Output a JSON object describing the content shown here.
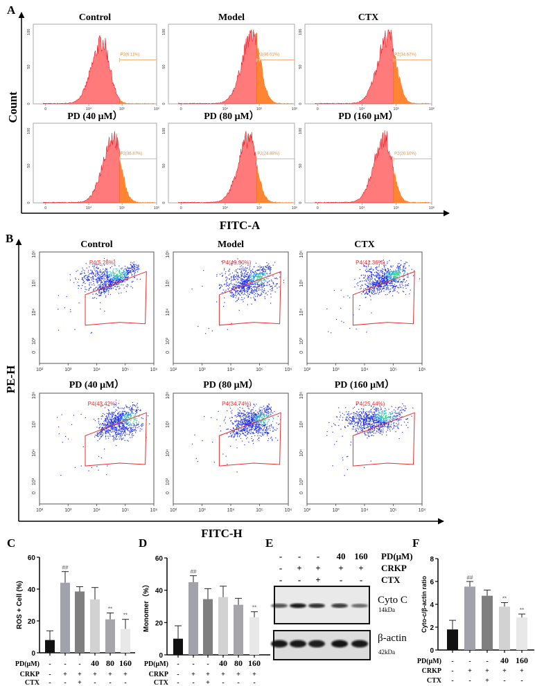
{
  "panel_labels": {
    "a": "A",
    "b": "B",
    "c": "C",
    "d": "D",
    "e": "E",
    "f": "F"
  },
  "panel_a": {
    "y_label": "Count",
    "x_label": "FITC-A",
    "x_ticks": [
      "0",
      "10⁴",
      "10⁵",
      "10⁶"
    ],
    "y_ticks": [
      "0",
      "50",
      "100"
    ],
    "plots": [
      {
        "title": "Control",
        "gate": "P2(6.11%)"
      },
      {
        "title": "Model",
        "gate": "P2(36.01%)"
      },
      {
        "title": "CTX",
        "gate": "P2(34.67%)"
      },
      {
        "title": "PD (40 μM）",
        "gate": "P2(36.87%)"
      },
      {
        "title": "PD (80 μM）",
        "gate": "P2(24.88%)"
      },
      {
        "title": "PD (160 μM）",
        "gate": "P2(20.10%)"
      }
    ],
    "colors": {
      "below_gate": "#ff7b7b",
      "above_gate": "#ff8533",
      "outline": "#e8202a",
      "gate_line": "#f2b37a"
    }
  },
  "panel_b": {
    "y_label": "PE-H",
    "x_label": "FITC-H",
    "x_ticks": [
      "10²",
      "10³",
      "10⁴",
      "10⁵",
      "10⁶"
    ],
    "y_ticks": [
      "0",
      "10³",
      "10⁴",
      "10⁵",
      "10⁶"
    ],
    "plots": [
      {
        "title": "Control",
        "gate": "P4(5.28%)"
      },
      {
        "title": "Model",
        "gate": "P4(49.30%)"
      },
      {
        "title": "CTX",
        "gate": "P4(41.36%)"
      },
      {
        "title": "PD (40 μM）",
        "gate": "P4(43.42%)"
      },
      {
        "title": "PD (80 μM）",
        "gate": "P4(34.74%)"
      },
      {
        "title": "PD (160 μM）",
        "gate": "P4(25.44%)"
      }
    ],
    "colors": {
      "dots": "#1e2ff0",
      "core": "#28d08a",
      "gate": "#ee2b2b"
    }
  },
  "panel_e": {
    "conditions": [
      {
        "label": "PD(μM)",
        "values": [
          "-",
          "-",
          "-",
          "40",
          "160"
        ]
      },
      {
        "label": "CRKP",
        "values": [
          "-",
          "+",
          "+",
          "+",
          "+"
        ]
      },
      {
        "label": "CTX",
        "values": [
          "-",
          "-",
          "+",
          "-",
          "-"
        ]
      }
    ],
    "blots": [
      {
        "name": "Cyto C",
        "size": "14kDa",
        "band_intensity": [
          0.7,
          0.95,
          0.85,
          0.8,
          0.6
        ]
      },
      {
        "name": "β-actin",
        "size": "42kDa",
        "band_intensity": [
          0.95,
          0.95,
          0.92,
          0.97,
          0.95
        ]
      }
    ]
  },
  "chart_data": [
    {
      "id": "C",
      "type": "bar",
      "title": "",
      "xlabel": "",
      "ylabel": "ROS + Cell (%)",
      "ylim": [
        0,
        60
      ],
      "yticks": [
        "0",
        "20",
        "40",
        "60"
      ],
      "categories": [
        "Control",
        "Model",
        "CTX",
        "PD 40",
        "PD 80",
        "PD 160"
      ],
      "values": [
        8,
        44,
        38.5,
        33.5,
        21,
        15
      ],
      "errors": [
        5.8,
        7,
        3,
        7.5,
        4,
        6
      ],
      "annotations": [
        "",
        "##",
        "",
        "",
        "**",
        "**"
      ],
      "colors": [
        "#111111",
        "#a2a2aa",
        "#7f7f7f",
        "#d2d2d2",
        "#a6a6aa",
        "#e8e8e8"
      ],
      "condition_rows": [
        {
          "label": "PD(μM)",
          "values": [
            "-",
            "-",
            "-",
            "40",
            "80",
            "160"
          ]
        },
        {
          "label": "CRKP",
          "values": [
            "-",
            "+",
            "+",
            "+",
            "+",
            "+"
          ]
        },
        {
          "label": "CTX",
          "values": [
            "-",
            "-",
            "+",
            "-",
            "-",
            "-"
          ]
        }
      ]
    },
    {
      "id": "D",
      "type": "bar",
      "title": "",
      "xlabel": "",
      "ylabel": "Monomer（%）",
      "ylim": [
        0,
        60
      ],
      "yticks": [
        "0",
        "20",
        "40",
        "60"
      ],
      "categories": [
        "Control",
        "Model",
        "CTX",
        "PD 40",
        "PD 80",
        "PD 160"
      ],
      "values": [
        10,
        45,
        34.5,
        35.8,
        31,
        23.3
      ],
      "errors": [
        8,
        4,
        6.5,
        6.7,
        4,
        3.4
      ],
      "annotations": [
        "",
        "##",
        "",
        "",
        "",
        "**"
      ],
      "colors": [
        "#111111",
        "#a2a2aa",
        "#7f7f7f",
        "#d2d2d2",
        "#a6a6aa",
        "#e8e8e8"
      ],
      "condition_rows": [
        {
          "label": "PD(μM)",
          "values": [
            "-",
            "-",
            "-",
            "40",
            "80",
            "160"
          ]
        },
        {
          "label": "CRKP",
          "values": [
            "-",
            "+",
            "+",
            "+",
            "+",
            "+"
          ]
        },
        {
          "label": "CTX",
          "values": [
            "-",
            "-",
            "+",
            "-",
            "-",
            "-"
          ]
        }
      ]
    },
    {
      "id": "F",
      "type": "bar",
      "title": "",
      "xlabel": "",
      "ylabel": "Cyto-c/β-actin ratio",
      "ylim": [
        0,
        8
      ],
      "yticks": [
        "0",
        "2",
        "4",
        "6",
        "8"
      ],
      "categories": [
        "Control",
        "Model",
        "CTX",
        "PD 40",
        "PD 160"
      ],
      "values": [
        1.8,
        5.55,
        4.75,
        3.8,
        2.85
      ],
      "errors": [
        0.8,
        0.45,
        0.5,
        0.35,
        0.3
      ],
      "annotations": [
        "",
        "##",
        "",
        "**",
        "**"
      ],
      "colors": [
        "#111111",
        "#a2a2aa",
        "#7f7f7f",
        "#d2d2d2",
        "#e8e8e8"
      ],
      "condition_rows": [
        {
          "label": "PD(μM)",
          "values": [
            "-",
            "-",
            "-",
            "40",
            "160"
          ]
        },
        {
          "label": "CRKP",
          "values": [
            "-",
            "+",
            "+",
            "+",
            "+"
          ]
        },
        {
          "label": "CTX",
          "values": [
            "-",
            "-",
            "+",
            "-",
            "-"
          ]
        }
      ]
    }
  ]
}
